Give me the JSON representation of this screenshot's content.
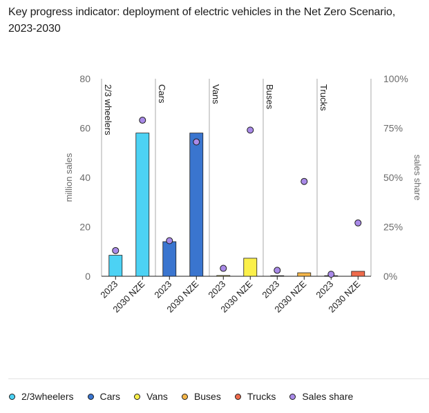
{
  "title": "Key progress indicator: deployment of electric vehicles in the Net Zero Scenario, 2023-2030",
  "colors": {
    "wheelers": "#4cd2f4",
    "cars": "#3a75cf",
    "vans": "#fbf04a",
    "buses": "#f4b64a",
    "trucks": "#ef6b4c",
    "sales_share": "#a98ae8"
  },
  "legend": [
    {
      "label": "2/3wheelers",
      "color": "#4cd2f4"
    },
    {
      "label": "Cars",
      "color": "#3a75cf"
    },
    {
      "label": "Vans",
      "color": "#fbf04a"
    },
    {
      "label": "Buses",
      "color": "#f4b64a"
    },
    {
      "label": "Trucks",
      "color": "#ef6b4c"
    },
    {
      "label": "Sales share",
      "color": "#a98ae8"
    }
  ],
  "chart_data": {
    "type": "bar",
    "title": "Key progress indicator: deployment of electric vehicles in the Net Zero Scenario, 2023-2030",
    "ylabel": "million sales",
    "y2label": "sales share",
    "ylim": [
      0,
      80
    ],
    "y2lim": [
      0,
      100
    ],
    "yticks": [
      "0",
      "20",
      "40",
      "60",
      "80"
    ],
    "y2ticks": [
      "0%",
      "25%",
      "50%",
      "75%",
      "100%"
    ],
    "grid": false,
    "legend_position": "bottom",
    "categories": [
      "2023",
      "2030 NZE"
    ],
    "panels": [
      {
        "name": "2/3 wheelers",
        "color": "#4cd2f4",
        "sales": [
          8.5,
          58
        ],
        "share": [
          13,
          79
        ]
      },
      {
        "name": "Cars",
        "color": "#3a75cf",
        "sales": [
          14,
          58
        ],
        "share": [
          18,
          68
        ]
      },
      {
        "name": "Vans",
        "color": "#fbf04a",
        "sales": [
          0.3,
          7.3
        ],
        "share": [
          4,
          74
        ]
      },
      {
        "name": "Buses",
        "color": "#f4b64a",
        "sales": [
          0.1,
          1.4
        ],
        "share": [
          3,
          48
        ]
      },
      {
        "name": "Trucks",
        "color": "#ef6b4c",
        "sales": [
          0.05,
          2
        ],
        "share": [
          1,
          27
        ]
      }
    ],
    "series": [
      {
        "name": "2/3wheelers"
      },
      {
        "name": "Cars"
      },
      {
        "name": "Vans"
      },
      {
        "name": "Buses"
      },
      {
        "name": "Trucks"
      },
      {
        "name": "Sales share"
      }
    ]
  }
}
